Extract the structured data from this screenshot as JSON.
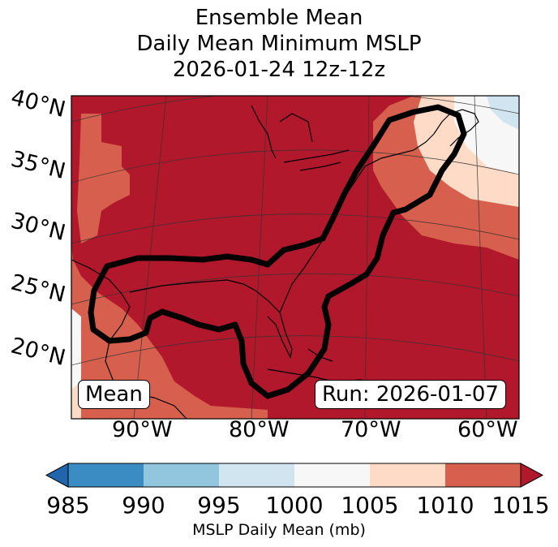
{
  "title": {
    "line1": "Ensemble Mean",
    "line2": "Daily Mean Minimum MSLP",
    "line3": "2026-01-24 12z-12z"
  },
  "map": {
    "lat_labels": [
      "40°N",
      "35°N",
      "30°N",
      "25°N",
      "20°N"
    ],
    "lon_labels": [
      "90°W",
      "80°W",
      "70°W",
      "60°W"
    ],
    "mean_box": "Mean",
    "run_box": "Run: 2026-01-07",
    "shading_colors": {
      "985-990": "#3b8cc2",
      "990-995": "#92c5de",
      "995-1000": "#d1e5f0",
      "1000-1005": "#f7f7f7",
      "1005-1010": "#fddbc7",
      "1010-1015": "#d6604d",
      "above-1015": "#b2182b",
      "below-985": "#2166ac"
    },
    "contour_color": "#000000"
  },
  "colorbar": {
    "ticks": [
      "985",
      "990",
      "995",
      "1000",
      "1005",
      "1010",
      "1015"
    ],
    "label": "MSLP Daily Mean (mb)",
    "colors": [
      "#3b8cc2",
      "#92c5de",
      "#d1e5f0",
      "#f7f7f7",
      "#fddbc7",
      "#d6604d"
    ],
    "under_color": "#2166ac",
    "over_color": "#b2182b"
  }
}
